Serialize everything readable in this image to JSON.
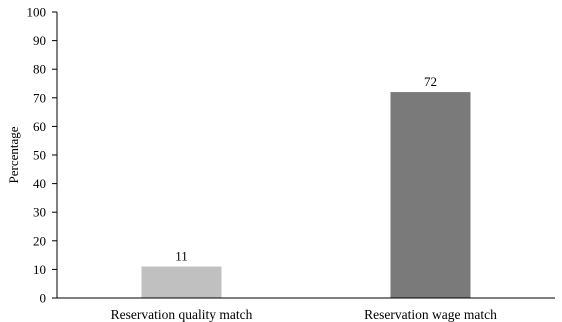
{
  "chart_data": {
    "type": "bar",
    "title": "",
    "xlabel": "",
    "ylabel": "Percentage",
    "ylim": [
      0,
      100
    ],
    "yticks": [
      0,
      10,
      20,
      30,
      40,
      50,
      60,
      70,
      80,
      90,
      100
    ],
    "categories": [
      "Reservation quality match",
      "Reservation wage match"
    ],
    "values": [
      11,
      72
    ],
    "data_labels": [
      "11",
      "72"
    ],
    "bar_colors": [
      "#c0c0c0",
      "#7a7a7a"
    ],
    "grid": false,
    "legend": "none"
  }
}
